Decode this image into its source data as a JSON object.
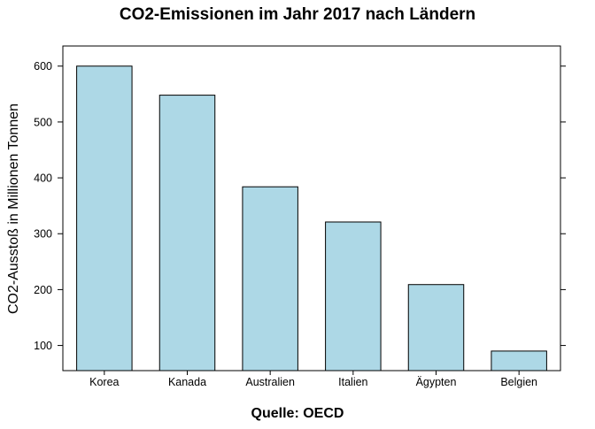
{
  "chart_data": {
    "type": "bar",
    "title": "CO2-Emissionen im Jahr 2017 nach Ländern",
    "xlabel": "Quelle: OECD",
    "ylabel": "CO2-Ausstoß in Millionen Tonnen",
    "categories": [
      "Korea",
      "Kanada",
      "Australien",
      "Italien",
      "Ägypten",
      "Belgien"
    ],
    "values": [
      600,
      548,
      384,
      321,
      209,
      90
    ],
    "ylim": [
      55,
      636
    ],
    "yticks": [
      100,
      200,
      300,
      400,
      500,
      600
    ],
    "ytick_labels": [
      "100",
      "200",
      "300",
      "400",
      "500",
      "600"
    ],
    "bar_color": "#add8e6",
    "bar_edge_color": "#000000",
    "grid": false,
    "legend": "none"
  }
}
